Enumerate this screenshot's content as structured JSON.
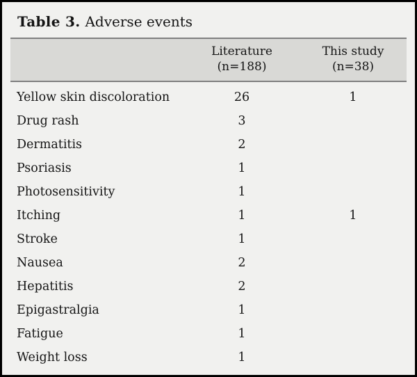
{
  "title": {
    "label": "Table 3.",
    "caption": "Adverse events"
  },
  "header": {
    "event_col": "",
    "literature": {
      "line1": "Literature",
      "line2": "(n=188)"
    },
    "this_study": {
      "line1": "This study",
      "line2": "(n=38)"
    }
  },
  "rows": [
    {
      "event": "Yellow skin discoloration",
      "literature": "26",
      "this_study": "1"
    },
    {
      "event": "Drug rash",
      "literature": "3",
      "this_study": ""
    },
    {
      "event": "Dermatitis",
      "literature": "2",
      "this_study": ""
    },
    {
      "event": "Psoriasis",
      "literature": "1",
      "this_study": ""
    },
    {
      "event": "Photosensitivity",
      "literature": "1",
      "this_study": ""
    },
    {
      "event": "Itching",
      "literature": "1",
      "this_study": "1"
    },
    {
      "event": "Stroke",
      "literature": "1",
      "this_study": ""
    },
    {
      "event": "Nausea",
      "literature": "2",
      "this_study": ""
    },
    {
      "event": "Hepatitis",
      "literature": "2",
      "this_study": ""
    },
    {
      "event": "Epigastralgia",
      "literature": "1",
      "this_study": ""
    },
    {
      "event": "Fatigue",
      "literature": "1",
      "this_study": ""
    },
    {
      "event": "Weight loss",
      "literature": "1",
      "this_study": ""
    }
  ],
  "colors": {
    "page_bg": "#f1f1ef",
    "header_bg": "#d9d9d6",
    "rule": "#7f7f7f",
    "border": "#000000",
    "text": "#141414"
  }
}
